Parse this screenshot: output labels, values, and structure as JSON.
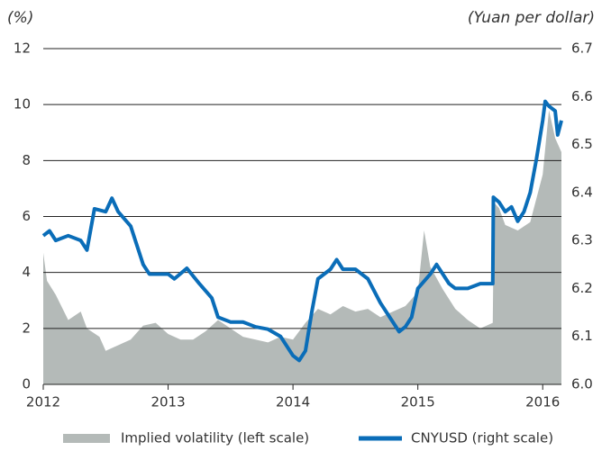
{
  "chart_data": {
    "type": "area-line",
    "y_label": "(%)",
    "y2_label": "(Yuan per dollar)",
    "xlim": [
      2012,
      2016.15
    ],
    "xticks": [
      2012,
      2013,
      2014,
      2015,
      2016
    ],
    "ylim": [
      0,
      12
    ],
    "yticks": [
      0,
      2,
      4,
      6,
      8,
      10,
      12
    ],
    "y2lim": [
      6.0,
      6.7
    ],
    "y2ticks": [
      {
        "value": 6.0,
        "label": "6.0"
      },
      6.1,
      6.2,
      6.3,
      6.4,
      6.5,
      6.6,
      6.7
    ],
    "grid": true,
    "legend": "bottom",
    "series": [
      {
        "name": "Implied volatility (left scale)",
        "kind": "area",
        "color": "#b4bab8",
        "x": [
          2012.0,
          2012.03,
          2012.1,
          2012.2,
          2012.3,
          2012.35,
          2012.45,
          2012.5,
          2012.6,
          2012.7,
          2012.8,
          2012.9,
          2013.0,
          2013.1,
          2013.2,
          2013.3,
          2013.4,
          2013.5,
          2013.6,
          2013.7,
          2013.8,
          2013.9,
          2014.0,
          2014.1,
          2014.2,
          2014.3,
          2014.4,
          2014.5,
          2014.6,
          2014.7,
          2014.8,
          2014.9,
          2015.0,
          2015.05,
          2015.1,
          2015.2,
          2015.3,
          2015.4,
          2015.5,
          2015.6,
          2015.61,
          2015.65,
          2015.7,
          2015.8,
          2015.9,
          2016.0,
          2016.05,
          2016.1,
          2016.15
        ],
        "values": [
          4.7,
          3.7,
          3.2,
          2.3,
          2.6,
          2.0,
          1.7,
          1.2,
          1.4,
          1.6,
          2.1,
          2.2,
          1.8,
          1.6,
          1.6,
          1.9,
          2.3,
          2.0,
          1.7,
          1.6,
          1.5,
          1.7,
          1.6,
          2.2,
          2.7,
          2.5,
          2.8,
          2.6,
          2.7,
          2.4,
          2.6,
          2.8,
          3.3,
          5.5,
          4.2,
          3.4,
          2.7,
          2.3,
          2.0,
          2.2,
          6.5,
          6.3,
          5.7,
          5.5,
          5.8,
          7.5,
          9.8,
          8.8,
          8.3
        ]
      },
      {
        "name": "CNYUSD (right scale)",
        "kind": "line",
        "axis": "y2",
        "color": "#0a6db8",
        "x": [
          2012.0,
          2012.05,
          2012.1,
          2012.2,
          2012.3,
          2012.35,
          2012.41,
          2012.5,
          2012.55,
          2012.6,
          2012.7,
          2012.75,
          2012.8,
          2012.85,
          2012.95,
          2013.0,
          2013.05,
          2013.15,
          2013.25,
          2013.35,
          2013.4,
          2013.5,
          2013.6,
          2013.7,
          2013.8,
          2013.9,
          2014.0,
          2014.05,
          2014.1,
          2014.15,
          2014.2,
          2014.3,
          2014.35,
          2014.4,
          2014.5,
          2014.6,
          2014.7,
          2014.8,
          2014.85,
          2014.9,
          2014.95,
          2015.0,
          2015.1,
          2015.15,
          2015.25,
          2015.3,
          2015.4,
          2015.5,
          2015.6,
          2015.605,
          2015.65,
          2015.7,
          2015.75,
          2015.8,
          2015.85,
          2015.9,
          2015.95,
          2016.0,
          2016.02,
          2016.05,
          2016.1,
          2016.12,
          2016.15
        ],
        "values": [
          6.31,
          6.32,
          6.3,
          6.31,
          6.3,
          6.28,
          6.366,
          6.36,
          6.388,
          6.36,
          6.33,
          6.29,
          6.25,
          6.23,
          6.23,
          6.23,
          6.22,
          6.242,
          6.21,
          6.18,
          6.14,
          6.13,
          6.13,
          6.12,
          6.115,
          6.1,
          6.06,
          6.05,
          6.07,
          6.15,
          6.22,
          6.24,
          6.26,
          6.24,
          6.24,
          6.22,
          6.17,
          6.13,
          6.11,
          6.12,
          6.14,
          6.2,
          6.23,
          6.25,
          6.21,
          6.2,
          6.2,
          6.21,
          6.21,
          6.39,
          6.38,
          6.36,
          6.37,
          6.34,
          6.36,
          6.4,
          6.47,
          6.55,
          6.59,
          6.58,
          6.57,
          6.52,
          6.55
        ]
      }
    ]
  }
}
